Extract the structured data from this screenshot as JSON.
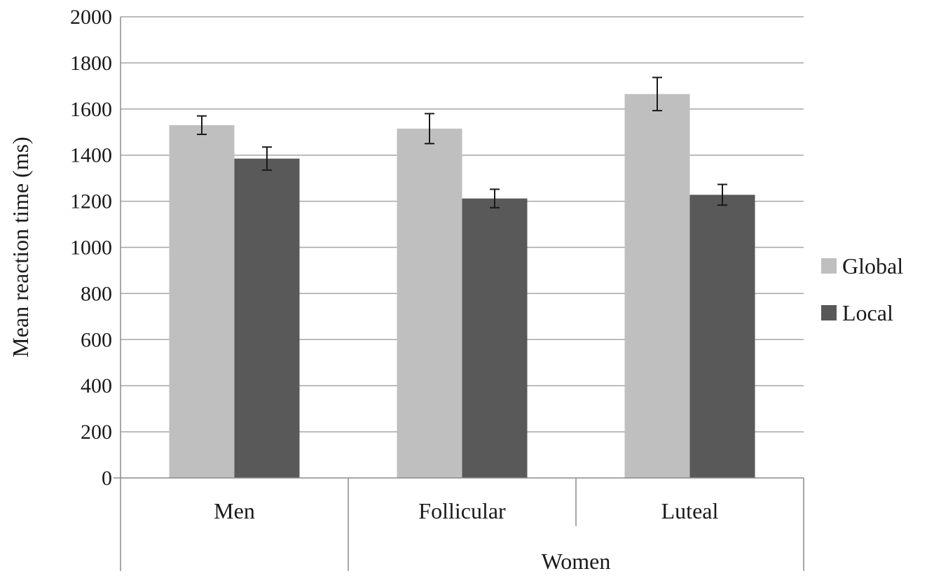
{
  "chart_data": {
    "type": "bar",
    "categories": [
      "Men",
      "Follicular",
      "Luteal"
    ],
    "category_groups": [
      {
        "label": "",
        "members": [
          "Men"
        ]
      },
      {
        "label": "Women",
        "members": [
          "Follicular",
          "Luteal"
        ]
      }
    ],
    "series": [
      {
        "name": "Global",
        "color": "#bfbfbf",
        "values": [
          1530,
          1515,
          1665
        ],
        "errors": [
          40,
          65,
          72
        ]
      },
      {
        "name": "Local",
        "color": "#595959",
        "values": [
          1385,
          1212,
          1228
        ],
        "errors": [
          50,
          40,
          45
        ]
      }
    ],
    "title": "",
    "xlabel": "",
    "ylabel": "Mean reaction time (ms)",
    "ylim": [
      0,
      2000
    ],
    "yticks": [
      0,
      200,
      400,
      600,
      800,
      1000,
      1200,
      1400,
      1600,
      1800,
      2000
    ],
    "grid": true,
    "legend_position": "right"
  }
}
